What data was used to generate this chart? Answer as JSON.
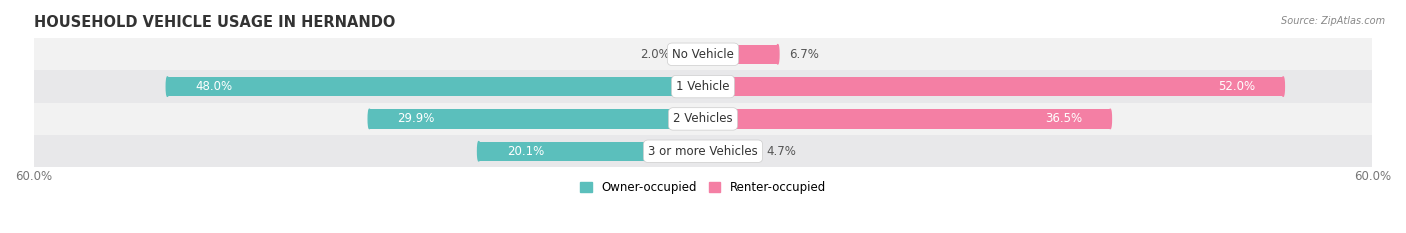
{
  "title": "HOUSEHOLD VEHICLE USAGE IN HERNANDO",
  "source": "Source: ZipAtlas.com",
  "categories": [
    "No Vehicle",
    "1 Vehicle",
    "2 Vehicles",
    "3 or more Vehicles"
  ],
  "owner_values": [
    2.0,
    48.0,
    29.9,
    20.1
  ],
  "renter_values": [
    6.7,
    52.0,
    36.5,
    4.7
  ],
  "owner_color": "#5BBFBC",
  "renter_color": "#F47FA4",
  "owner_color_light": "#A8DCDA",
  "renter_color_light": "#F9B8CE",
  "axis_limit": 60.0,
  "legend_owner": "Owner-occupied",
  "legend_renter": "Renter-occupied",
  "title_fontsize": 10.5,
  "label_fontsize": 8.5,
  "cat_fontsize": 8.5,
  "tick_fontsize": 8.5,
  "bar_height": 0.6,
  "background_color": "#FFFFFF",
  "row_bg_colors": [
    "#F2F2F2",
    "#E8E8EA",
    "#F2F2F2",
    "#E8E8EA"
  ],
  "row_border_color": "#DDDDDD"
}
